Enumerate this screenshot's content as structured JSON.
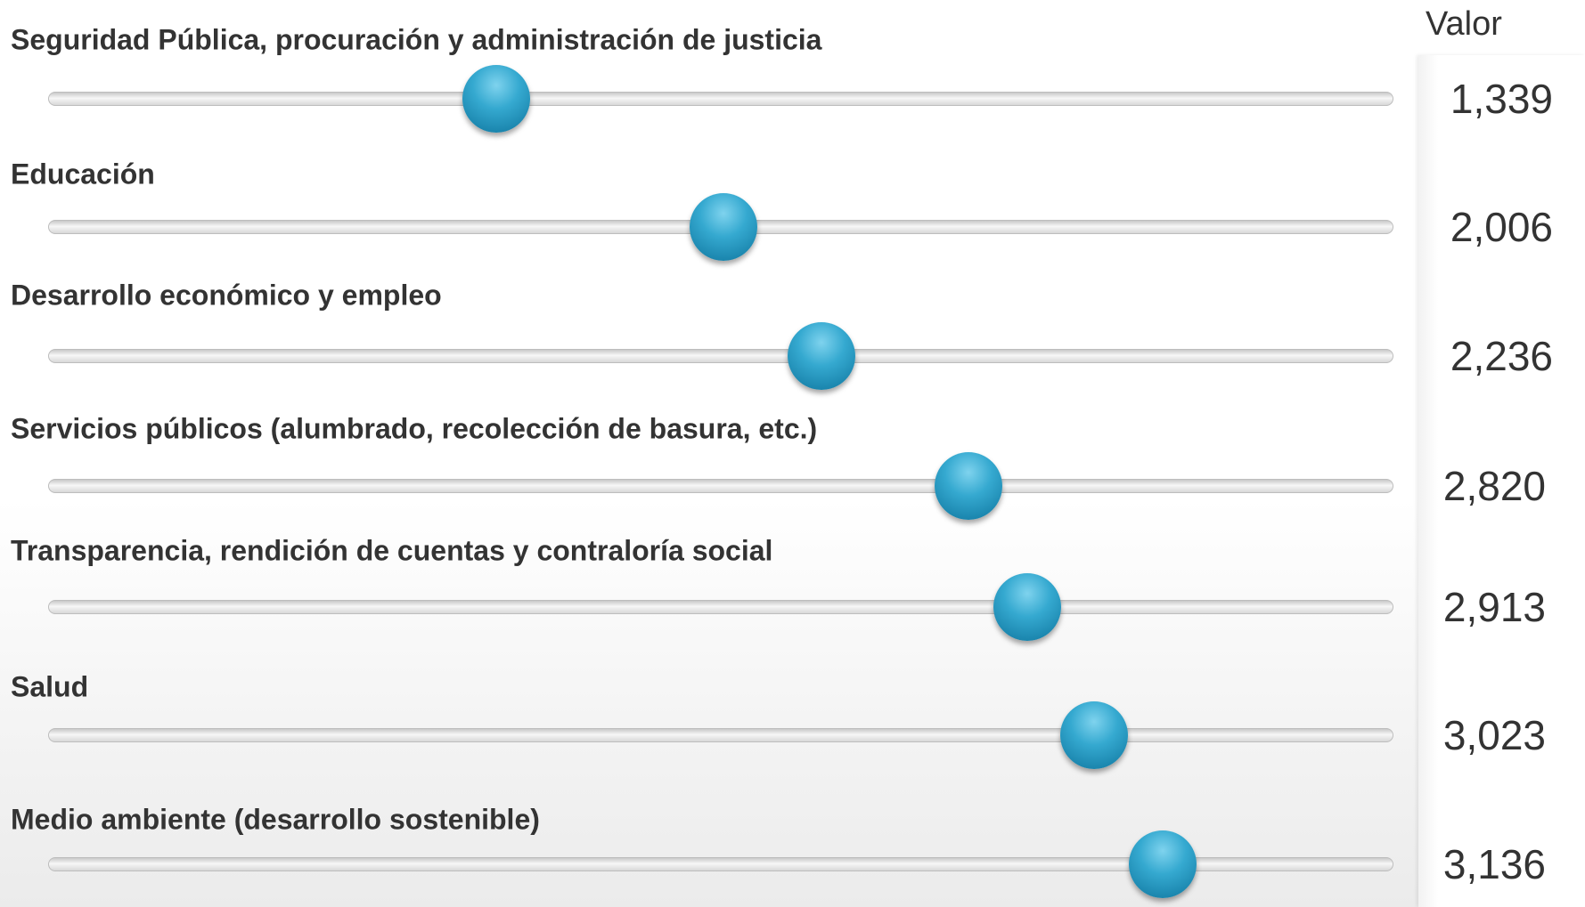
{
  "header": {
    "value_column": "Valor"
  },
  "sliders": [
    {
      "label": "Seguridad Pública, procuración y administración de justicia",
      "value": "1,339"
    },
    {
      "label": "Educación",
      "value": "2,006"
    },
    {
      "label": "Desarrollo económico y empleo",
      "value": "2,236"
    },
    {
      "label": "Servicios públicos (alumbrado, recolección de basura, etc.)",
      "value": "2,820"
    },
    {
      "label": "Transparencia, rendición de cuentas y contraloría social",
      "value": "2,913"
    },
    {
      "label": "Salud",
      "value": "3,023"
    },
    {
      "label": "Medio ambiente (desarrollo sostenible)",
      "value": "3,136"
    }
  ]
}
